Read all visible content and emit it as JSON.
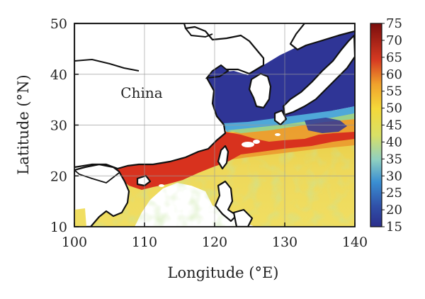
{
  "chart_data": {
    "type": "heatmap",
    "xlabel": "Longitude (°E)",
    "ylabel": "Latitude (°N)",
    "xlim": [
      100,
      140
    ],
    "ylim": [
      10,
      50
    ],
    "xticks": [
      "100",
      "110",
      "120",
      "130",
      "140"
    ],
    "yticks": [
      "10",
      "20",
      "30",
      "40",
      "50"
    ],
    "grid": true,
    "annotations": [
      {
        "text": "China",
        "lon": 112.5,
        "lat": 39
      }
    ],
    "colorbar": {
      "placement": "right",
      "range": [
        15,
        75
      ],
      "ticks": [
        "15",
        "20",
        "25",
        "30",
        "35",
        "40",
        "45",
        "50",
        "55",
        "60",
        "65",
        "70",
        "75"
      ],
      "colors": [
        "#2b2e8c",
        "#2d3f9e",
        "#3262b8",
        "#3a8fd2",
        "#5bb7d9",
        "#9ad4b7",
        "#d9e066",
        "#f4d93a",
        "#f2b02e",
        "#e8702a",
        "#d63a22",
        "#b01c1c",
        "#7a0d0d"
      ]
    }
  }
}
